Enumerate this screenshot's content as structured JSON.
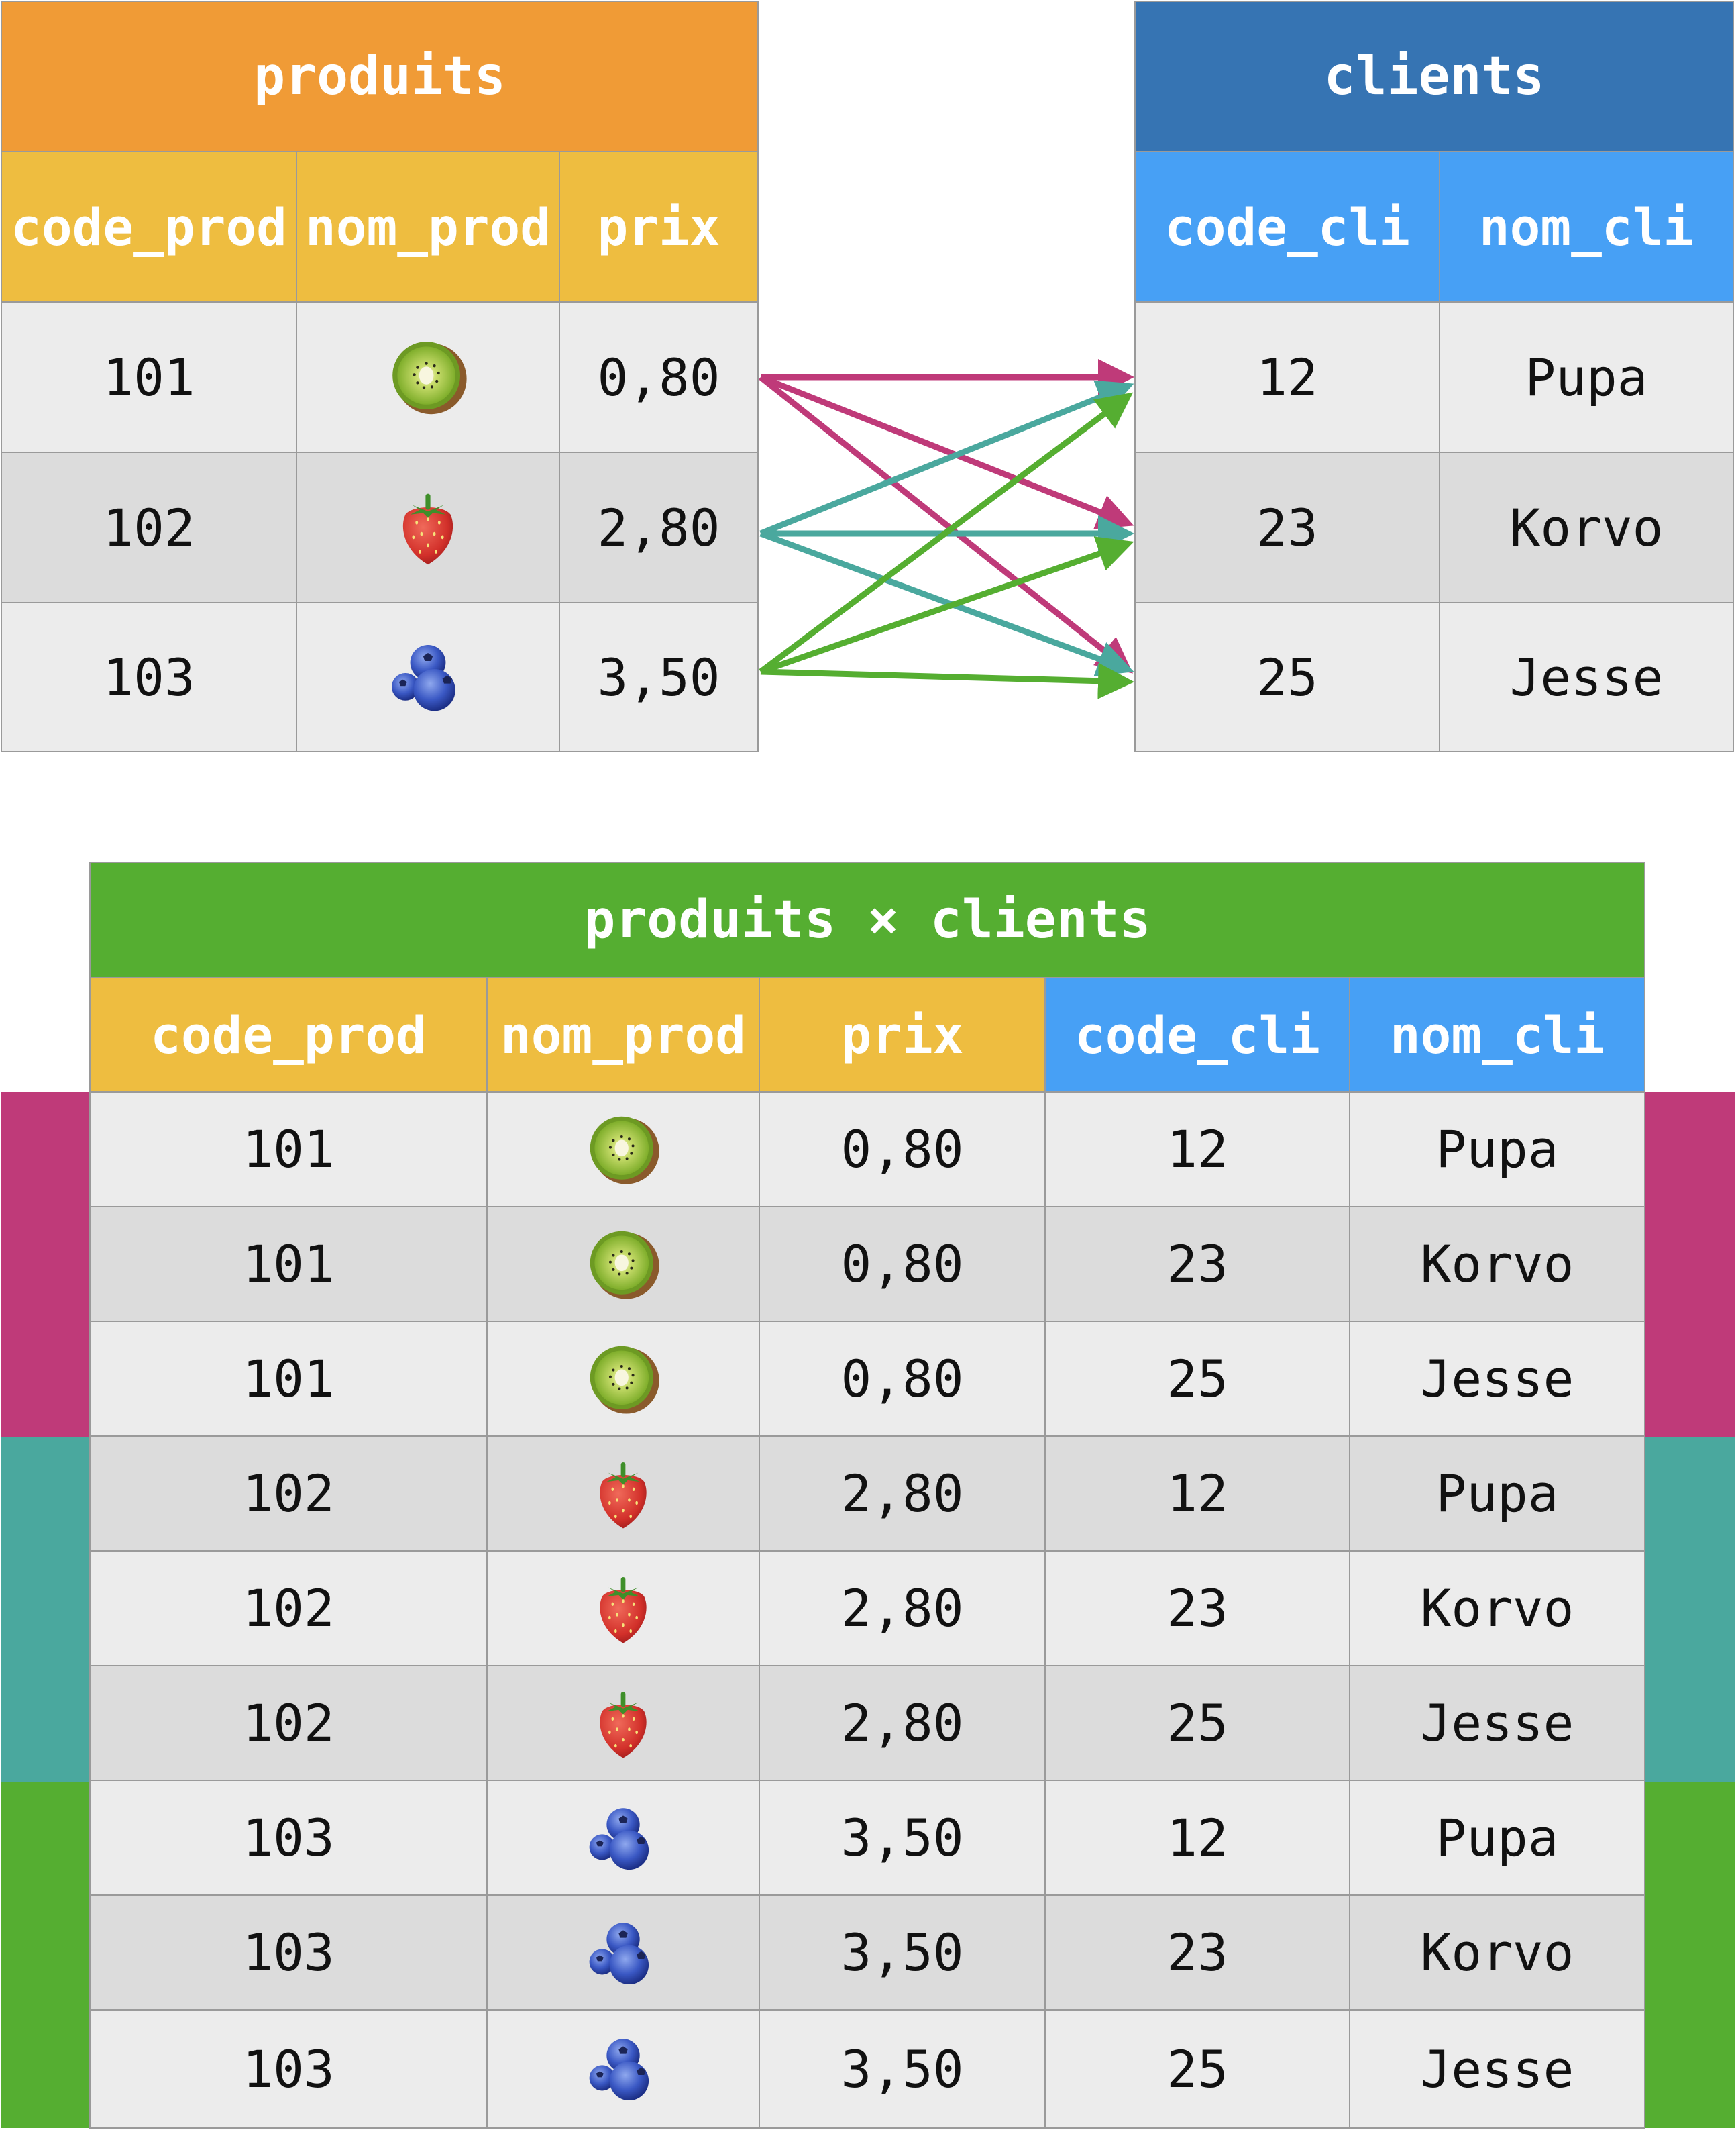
{
  "colors": {
    "kiwi_group": "#bf3a79",
    "strawberry_group": "#4aa89e",
    "blueberry_group": "#55ae31",
    "produits_title": "#f09b36",
    "produits_header": "#eebd40",
    "clients_title": "#3674b3",
    "clients_header": "#47a0f5",
    "product_title": "#55ae31"
  },
  "produits": {
    "title": "produits",
    "headers": [
      "code_prod",
      "nom_prod",
      "prix"
    ],
    "rows": [
      {
        "code": "101",
        "fruit": "kiwi-icon",
        "prix": "0,80"
      },
      {
        "code": "102",
        "fruit": "strawberry-icon",
        "prix": "2,80"
      },
      {
        "code": "103",
        "fruit": "blueberry-icon",
        "prix": "3,50"
      }
    ]
  },
  "clients": {
    "title": "clients",
    "headers": [
      "code_cli",
      "nom_cli"
    ],
    "rows": [
      {
        "code": "12",
        "nom": "Pupa"
      },
      {
        "code": "23",
        "nom": "Korvo"
      },
      {
        "code": "25",
        "nom": "Jesse"
      }
    ]
  },
  "product": {
    "title": "produits × clients",
    "headers": [
      "code_prod",
      "nom_prod",
      "prix",
      "code_cli",
      "nom_cli"
    ],
    "rows": [
      [
        "101",
        "kiwi-icon",
        "0,80",
        "12",
        "Pupa"
      ],
      [
        "101",
        "kiwi-icon",
        "0,80",
        "23",
        "Korvo"
      ],
      [
        "101",
        "kiwi-icon",
        "0,80",
        "25",
        "Jesse"
      ],
      [
        "102",
        "strawberry-icon",
        "2,80",
        "12",
        "Pupa"
      ],
      [
        "102",
        "strawberry-icon",
        "2,80",
        "23",
        "Korvo"
      ],
      [
        "102",
        "strawberry-icon",
        "2,80",
        "25",
        "Jesse"
      ],
      [
        "103",
        "blueberry-icon",
        "3,50",
        "12",
        "Pupa"
      ],
      [
        "103",
        "blueberry-icon",
        "3,50",
        "23",
        "Korvo"
      ],
      [
        "103",
        "blueberry-icon",
        "3,50",
        "25",
        "Jesse"
      ]
    ]
  }
}
